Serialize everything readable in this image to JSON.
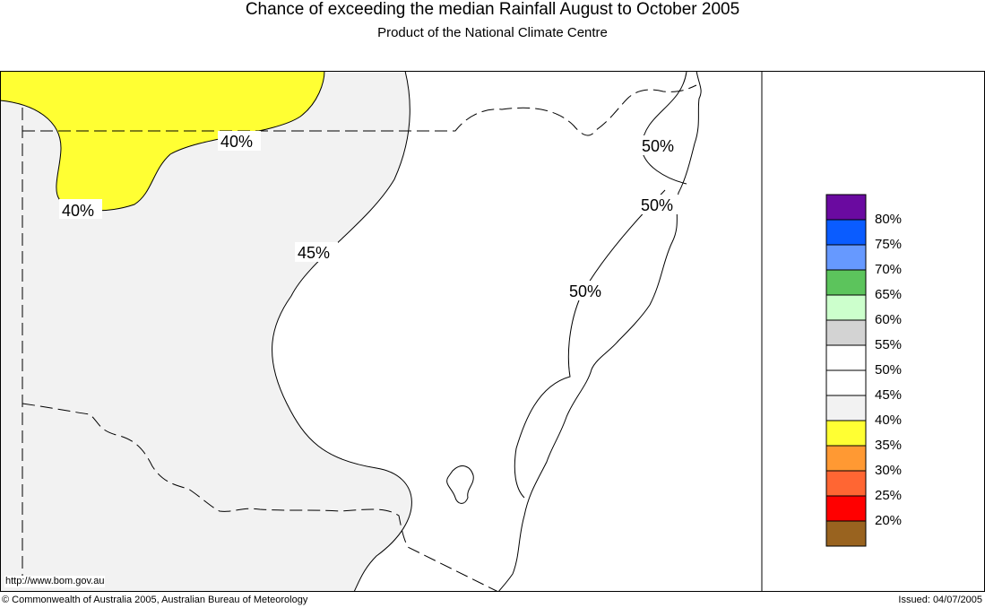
{
  "header": {
    "title": "Chance of exceeding the median Rainfall August to October 2005",
    "subtitle": "Product of the National Climate Centre"
  },
  "map": {
    "contour_labels": [
      "40%",
      "40%",
      "45%",
      "50%",
      "50%",
      "50%"
    ],
    "url": "http://www.bom.gov.au"
  },
  "legend": {
    "items": [
      {
        "label": "80%",
        "color": "#6a0aa0"
      },
      {
        "label": "75%",
        "color": "#0a5cff"
      },
      {
        "label": "70%",
        "color": "#6699ff"
      },
      {
        "label": "65%",
        "color": "#5cc45c"
      },
      {
        "label": "60%",
        "color": "#ccffcc"
      },
      {
        "label": "55%",
        "color": "#d3d3d3"
      },
      {
        "label": "50%",
        "color": "#ffffff"
      },
      {
        "label": "45%",
        "color": "#ffffff"
      },
      {
        "label": "40%",
        "color": "#f2f2f2"
      },
      {
        "label": "35%",
        "color": "#ffff33"
      },
      {
        "label": "30%",
        "color": "#ff9933"
      },
      {
        "label": "25%",
        "color": "#ff6633"
      },
      {
        "label": "20%",
        "color": "#ff0000"
      },
      {
        "label": "",
        "color": "#99631f"
      }
    ]
  },
  "footer": {
    "copyright": "© Commonwealth of Australia 2005, Australian Bureau of Meteorology",
    "issued": "Issued: 04/07/2005"
  }
}
